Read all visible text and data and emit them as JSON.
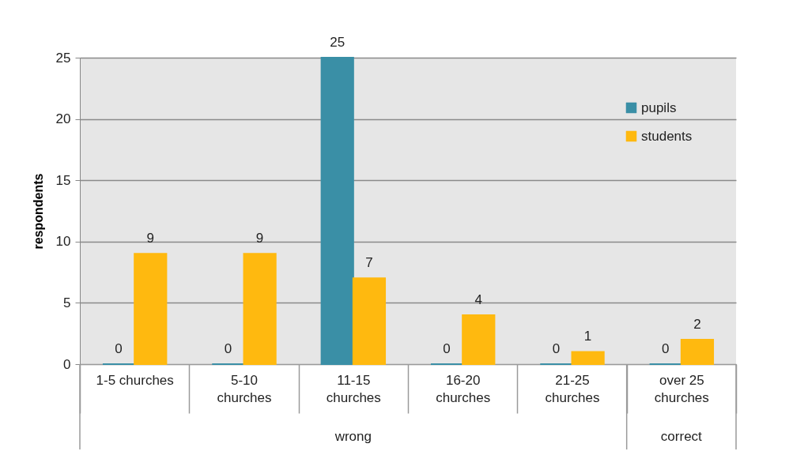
{
  "chart_data": {
    "type": "bar",
    "ylabel": "respondents",
    "categories": [
      "1-5 churches",
      "5-10 churches",
      "11-15 churches",
      "16-20 churches",
      "21-25 churches",
      "over 25 churches"
    ],
    "series": [
      {
        "name": "pupils",
        "color": "#3a8fa6",
        "values": [
          0,
          0,
          25,
          0,
          0,
          0
        ]
      },
      {
        "name": "students",
        "color": "#ffb90f",
        "values": [
          9,
          9,
          7,
          4,
          1,
          2
        ]
      }
    ],
    "ylim": [
      0,
      25
    ],
    "yticks": [
      0,
      5,
      10,
      15,
      20,
      25
    ],
    "grid": "y",
    "legend": "top right",
    "data_labels": true,
    "annotations": [
      "wrong",
      "correct"
    ]
  }
}
